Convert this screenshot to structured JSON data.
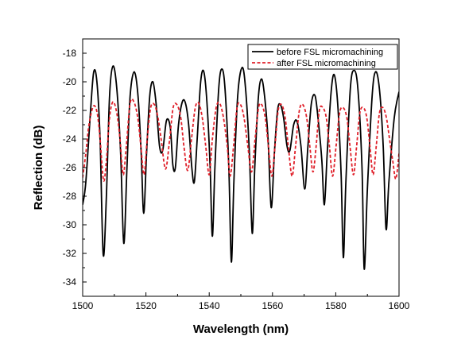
{
  "chart_data": {
    "type": "line",
    "xlabel": "Wavelength (nm)",
    "ylabel": "Reflection (dB)",
    "xlim": [
      1500,
      1600
    ],
    "ylim": [
      -35,
      -17
    ],
    "x_ticks": [
      1500,
      1520,
      1540,
      1560,
      1580,
      1600
    ],
    "x_tick_labels": [
      "1500",
      "1520",
      "1540",
      "1560",
      "1580",
      "1600"
    ],
    "y_ticks": [
      -34,
      -32,
      -30,
      -28,
      -26,
      -24,
      -22,
      -20,
      -18
    ],
    "y_tick_labels": [
      "-34",
      "-32",
      "-30",
      "-28",
      "-26",
      "-24",
      "-22",
      "-20",
      "-18"
    ],
    "grid": false,
    "legend": "top-right",
    "series": [
      {
        "name": "before FSL micromachining",
        "color": "#000000",
        "style": "solid",
        "points": [
          [
            1500,
            -28.6
          ],
          [
            1501,
            -27.0
          ],
          [
            1502.5,
            -22.0
          ],
          [
            1503.5,
            -19.3
          ],
          [
            1504.5,
            -20.0
          ],
          [
            1505.5,
            -24.0
          ],
          [
            1506.5,
            -32.1
          ],
          [
            1507.5,
            -28.0
          ],
          [
            1508.5,
            -21.0
          ],
          [
            1509.6,
            -18.9
          ],
          [
            1510.8,
            -20.5
          ],
          [
            1512,
            -25.0
          ],
          [
            1513,
            -31.3
          ],
          [
            1514,
            -26.0
          ],
          [
            1515,
            -21.0
          ],
          [
            1516.3,
            -19.3
          ],
          [
            1517.5,
            -21.0
          ],
          [
            1518.5,
            -25.0
          ],
          [
            1519.3,
            -29.2
          ],
          [
            1520.2,
            -25.0
          ],
          [
            1521.2,
            -21.0
          ],
          [
            1522.2,
            -20.0
          ],
          [
            1523.2,
            -21.5
          ],
          [
            1524.3,
            -24.5
          ],
          [
            1525.3,
            -24.8
          ],
          [
            1526.5,
            -22.7
          ],
          [
            1527.7,
            -23.2
          ],
          [
            1528.5,
            -25.8
          ],
          [
            1529.3,
            -26.0
          ],
          [
            1530.3,
            -23.0
          ],
          [
            1531.5,
            -21.4
          ],
          [
            1532.5,
            -21.5
          ],
          [
            1533.5,
            -23.0
          ],
          [
            1534.5,
            -26.0
          ],
          [
            1535.3,
            -27.0
          ],
          [
            1536.2,
            -24.0
          ],
          [
            1537.3,
            -20.0
          ],
          [
            1538.3,
            -19.3
          ],
          [
            1539.3,
            -21.5
          ],
          [
            1540.3,
            -26.0
          ],
          [
            1541,
            -30.8
          ],
          [
            1541.8,
            -26.0
          ],
          [
            1543,
            -20.5
          ],
          [
            1544,
            -19.1
          ],
          [
            1545,
            -20.5
          ],
          [
            1546.2,
            -26.0
          ],
          [
            1547,
            -32.6
          ],
          [
            1547.8,
            -27.0
          ],
          [
            1549,
            -21.0
          ],
          [
            1550.4,
            -19.0
          ],
          [
            1551.5,
            -20.5
          ],
          [
            1552.7,
            -25.0
          ],
          [
            1553.6,
            -30.6
          ],
          [
            1554.4,
            -26.0
          ],
          [
            1555.5,
            -21.2
          ],
          [
            1556.5,
            -19.8
          ],
          [
            1557.5,
            -21.0
          ],
          [
            1558.6,
            -24.0
          ],
          [
            1559.6,
            -28.8
          ],
          [
            1560.6,
            -25.0
          ],
          [
            1561.6,
            -22.0
          ],
          [
            1562.5,
            -21.6
          ],
          [
            1563.5,
            -22.5
          ],
          [
            1564.6,
            -24.5
          ],
          [
            1565.5,
            -24.8
          ],
          [
            1566.7,
            -23.0
          ],
          [
            1567.8,
            -22.8
          ],
          [
            1569,
            -24.5
          ],
          [
            1570.2,
            -27.5
          ],
          [
            1571.2,
            -24.5
          ],
          [
            1572.3,
            -21.5
          ],
          [
            1573.5,
            -21.0
          ],
          [
            1574.6,
            -23.0
          ],
          [
            1575.6,
            -25.5
          ],
          [
            1576.4,
            -28.6
          ],
          [
            1577.3,
            -25.0
          ],
          [
            1578.5,
            -20.8
          ],
          [
            1579.5,
            -19.5
          ],
          [
            1580.6,
            -21.5
          ],
          [
            1581.7,
            -26.5
          ],
          [
            1582.4,
            -32.3
          ],
          [
            1583.2,
            -27.0
          ],
          [
            1584.6,
            -20.5
          ],
          [
            1585.8,
            -19.2
          ],
          [
            1587,
            -20.5
          ],
          [
            1588.3,
            -26.0
          ],
          [
            1589,
            -33.1
          ],
          [
            1590,
            -27.5
          ],
          [
            1591.5,
            -21.0
          ],
          [
            1592.6,
            -19.3
          ],
          [
            1593.8,
            -20.5
          ],
          [
            1595,
            -24.5
          ],
          [
            1595.9,
            -30.3
          ],
          [
            1596.8,
            -27.0
          ],
          [
            1598.5,
            -22.5
          ],
          [
            1600,
            -20.7
          ]
        ]
      },
      {
        "name": "after FSL micromachining",
        "color": "#e0202a",
        "style": "dashed",
        "points": [
          [
            1500,
            -26.7
          ],
          [
            1501,
            -25.0
          ],
          [
            1502,
            -23.0
          ],
          [
            1503.4,
            -21.7
          ],
          [
            1504.6,
            -22.2
          ],
          [
            1505.5,
            -24.0
          ],
          [
            1506.6,
            -26.9
          ],
          [
            1507.5,
            -25.5
          ],
          [
            1508.5,
            -22.5
          ],
          [
            1509.6,
            -21.4
          ],
          [
            1510.8,
            -22.2
          ],
          [
            1511.8,
            -24.0
          ],
          [
            1512.8,
            -26.5
          ],
          [
            1513.8,
            -24.5
          ],
          [
            1515,
            -21.5
          ],
          [
            1516.2,
            -21.4
          ],
          [
            1517.4,
            -22.5
          ],
          [
            1518.4,
            -24.5
          ],
          [
            1519.4,
            -26.5
          ],
          [
            1520.4,
            -24.0
          ],
          [
            1521.5,
            -21.8
          ],
          [
            1522.7,
            -21.6
          ],
          [
            1523.8,
            -22.5
          ],
          [
            1524.8,
            -24.0
          ],
          [
            1526.2,
            -26.1
          ],
          [
            1527.5,
            -24.0
          ],
          [
            1528.6,
            -21.8
          ],
          [
            1529.8,
            -21.6
          ],
          [
            1531,
            -22.5
          ],
          [
            1532,
            -24.5
          ],
          [
            1533.2,
            -26.2
          ],
          [
            1534.4,
            -24.0
          ],
          [
            1535.6,
            -21.8
          ],
          [
            1536.7,
            -21.5
          ],
          [
            1537.8,
            -22.5
          ],
          [
            1538.9,
            -24.5
          ],
          [
            1540,
            -26.5
          ],
          [
            1541,
            -24.0
          ],
          [
            1542.2,
            -21.8
          ],
          [
            1543.3,
            -21.5
          ],
          [
            1544.5,
            -22.5
          ],
          [
            1545.7,
            -24.5
          ],
          [
            1546.6,
            -26.6
          ],
          [
            1547.7,
            -24.5
          ],
          [
            1548.8,
            -21.8
          ],
          [
            1549.9,
            -21.6
          ],
          [
            1551,
            -22.5
          ],
          [
            1552.2,
            -24.5
          ],
          [
            1553.4,
            -26.3
          ],
          [
            1554.5,
            -24.0
          ],
          [
            1555.6,
            -21.8
          ],
          [
            1556.6,
            -21.6
          ],
          [
            1557.7,
            -22.5
          ],
          [
            1558.7,
            -24.5
          ],
          [
            1559.8,
            -26.6
          ],
          [
            1560.8,
            -24.5
          ],
          [
            1561.8,
            -22.0
          ],
          [
            1562.9,
            -21.6
          ],
          [
            1564,
            -22.5
          ],
          [
            1565,
            -24.5
          ],
          [
            1566.2,
            -26.6
          ],
          [
            1567.3,
            -24.5
          ],
          [
            1568.5,
            -22.0
          ],
          [
            1569.6,
            -21.6
          ],
          [
            1570.8,
            -22.5
          ],
          [
            1571.8,
            -24.5
          ],
          [
            1572.8,
            -26.3
          ],
          [
            1573.8,
            -24.5
          ],
          [
            1574.8,
            -22.0
          ],
          [
            1575.9,
            -21.8
          ],
          [
            1577,
            -22.5
          ],
          [
            1578,
            -24.5
          ],
          [
            1579,
            -26.6
          ],
          [
            1580.1,
            -24.5
          ],
          [
            1581.2,
            -22.2
          ],
          [
            1582.3,
            -21.8
          ],
          [
            1583.5,
            -22.5
          ],
          [
            1584.5,
            -24.5
          ],
          [
            1585.6,
            -26.5
          ],
          [
            1586.6,
            -24.5
          ],
          [
            1587.6,
            -22.2
          ],
          [
            1588.7,
            -21.8
          ],
          [
            1589.8,
            -22.5
          ],
          [
            1590.8,
            -24.5
          ],
          [
            1591.8,
            -26.5
          ],
          [
            1592.8,
            -24.5
          ],
          [
            1593.8,
            -22.2
          ],
          [
            1594.9,
            -21.8
          ],
          [
            1596,
            -22.5
          ],
          [
            1597,
            -24.0
          ],
          [
            1598,
            -25.5
          ],
          [
            1599,
            -26.8
          ],
          [
            1600,
            -25.0
          ]
        ]
      }
    ]
  }
}
